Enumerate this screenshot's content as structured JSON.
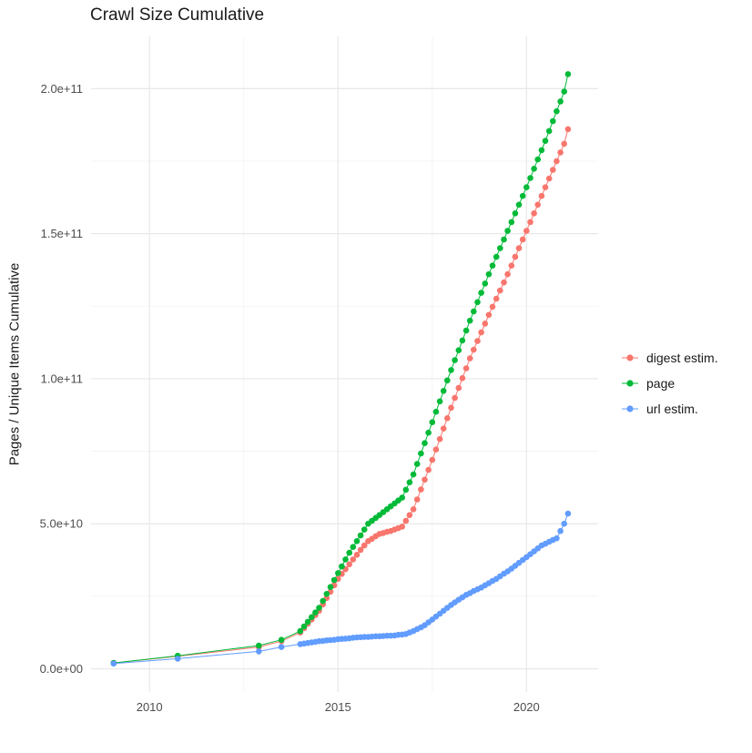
{
  "chart_data": {
    "type": "scatter",
    "title": "Crawl Size Cumulative",
    "xlabel": "",
    "ylabel": "Pages / Unique Items Cumulative",
    "y_unit": "values stored in billions (1e9) of pages / unique items",
    "grid": true,
    "legend_position": "right",
    "xlim": [
      2008.45,
      2021.9
    ],
    "ylim_billions": [
      -8,
      218
    ],
    "x_ticks": [
      2010,
      2015,
      2020
    ],
    "x_tick_labels": [
      "2010",
      "2015",
      "2020"
    ],
    "x_minor_ticks": [
      2012.5,
      2017.5
    ],
    "y_ticks_billions": [
      0,
      50,
      100,
      150,
      200
    ],
    "y_tick_labels": [
      "0.0e+00",
      "5.0e+10",
      "1.0e+11",
      "1.5e+11",
      "2.0e+11"
    ],
    "y_minor_ticks_billions": [
      25,
      75,
      125,
      175
    ],
    "x": [
      2009.05,
      2010.75,
      2012.9,
      2013.5,
      2014.0,
      2014.1,
      2014.2,
      2014.3,
      2014.4,
      2014.5,
      2014.6,
      2014.7,
      2014.8,
      2014.9,
      2015.0,
      2015.1,
      2015.2,
      2015.3,
      2015.4,
      2015.5,
      2015.6,
      2015.7,
      2015.8,
      2015.9,
      2016.0,
      2016.1,
      2016.2,
      2016.3,
      2016.4,
      2016.5,
      2016.6,
      2016.7,
      2016.8,
      2016.9,
      2017.0,
      2017.1,
      2017.2,
      2017.3,
      2017.4,
      2017.5,
      2017.6,
      2017.7,
      2017.8,
      2017.9,
      2018.0,
      2018.1,
      2018.2,
      2018.3,
      2018.4,
      2018.5,
      2018.6,
      2018.7,
      2018.8,
      2018.9,
      2019.0,
      2019.1,
      2019.2,
      2019.3,
      2019.4,
      2019.5,
      2019.6,
      2019.7,
      2019.8,
      2019.9,
      2020.0,
      2020.1,
      2020.2,
      2020.3,
      2020.4,
      2020.5,
      2020.6,
      2020.7,
      2020.8,
      2020.9,
      2021.0,
      2021.1
    ],
    "series": [
      {
        "name": "digest estim.",
        "color": "#F8766D",
        "y_billions": [
          2,
          4.3,
          7.5,
          9.5,
          12.5,
          14,
          15.5,
          17,
          18.5,
          20,
          22.2,
          24.4,
          26.6,
          28.8,
          31,
          32.7,
          34.3,
          36,
          37.7,
          39.3,
          41,
          42.5,
          44,
          44.8,
          45.7,
          46.5,
          46.8,
          47.2,
          47.5,
          48,
          48.5,
          49,
          51,
          53,
          55,
          58.4,
          61.8,
          65.2,
          68.6,
          72,
          75.6,
          79.2,
          82.8,
          86.4,
          90,
          93.4,
          96.8,
          100.2,
          103.6,
          107,
          110,
          113,
          116,
          119,
          122,
          124.8,
          127.6,
          130.4,
          133.2,
          136,
          139,
          142,
          145,
          148,
          151,
          154,
          157,
          160,
          163,
          166,
          169,
          172,
          175,
          178,
          181,
          186
        ]
      },
      {
        "name": "page",
        "color": "#00BA38",
        "y_billions": [
          2,
          4.5,
          8,
          10,
          13,
          14.6,
          16.2,
          17.8,
          19.4,
          21,
          23.4,
          25.8,
          28.2,
          30.6,
          33,
          35.3,
          37.7,
          40,
          42,
          44,
          46,
          48,
          50,
          51,
          52,
          53,
          54,
          55,
          56,
          57,
          58,
          59,
          61.7,
          64.3,
          67,
          70.6,
          74.2,
          77.8,
          81.4,
          85,
          88.6,
          92.2,
          95.8,
          99.4,
          103,
          106.4,
          109.8,
          113.2,
          116.6,
          120,
          123.2,
          126.4,
          129.6,
          132.8,
          136,
          139,
          142,
          145,
          148,
          151,
          154,
          157,
          160,
          163,
          166,
          169.2,
          172.4,
          175.6,
          178.8,
          182,
          185.4,
          188.8,
          192.2,
          195.6,
          199,
          205
        ]
      },
      {
        "name": "url estim.",
        "color": "#619CFF",
        "y_billions": [
          1.8,
          3.5,
          6,
          7.5,
          8.5,
          8.7,
          8.9,
          9.1,
          9.3,
          9.5,
          9.6,
          9.8,
          9.9,
          10.0,
          10.2,
          10.3,
          10.4,
          10.5,
          10.7,
          10.8,
          10.9,
          11.0,
          11.0,
          11.1,
          11.2,
          11.2,
          11.3,
          11.4,
          11.4,
          11.5,
          11.7,
          11.8,
          12.0,
          12.5,
          13,
          13.7,
          14.3,
          15,
          16,
          17,
          18,
          19,
          20,
          21,
          22,
          22.9,
          23.8,
          24.6,
          25.5,
          26.1,
          26.8,
          27.4,
          28,
          28.8,
          29.5,
          30.3,
          31,
          31.9,
          32.8,
          33.6,
          34.5,
          35.5,
          36.5,
          37.5,
          38.5,
          39.5,
          40.5,
          41.5,
          42.5,
          43.1,
          43.8,
          44.4,
          45,
          47.5,
          50,
          53.5
        ]
      }
    ],
    "style": {
      "point_radius": 3.3,
      "line_width": 1,
      "grid_major_color": "#e8e8e8",
      "grid_minor_color": "#f2f2f2",
      "background": "#ffffff",
      "text_color": "#1a1a1a",
      "tick_text_color": "#4d4d4d"
    }
  }
}
